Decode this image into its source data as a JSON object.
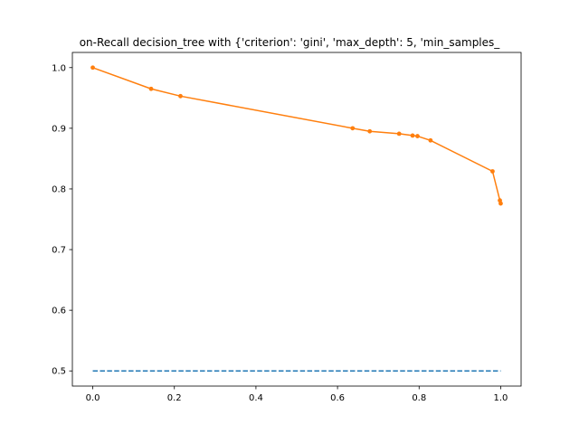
{
  "chart_data": {
    "type": "line",
    "title": "on-Recall decision_tree with {'criterion': 'gini', 'max_depth': 5, 'min_samples_",
    "xlabel": "",
    "ylabel": "",
    "xlim": [
      -0.05,
      1.05
    ],
    "ylim": [
      0.475,
      1.025
    ],
    "x_ticks": [
      0.0,
      0.2,
      0.4,
      0.6,
      0.8,
      1.0
    ],
    "x_tick_labels": [
      "0.0",
      "0.2",
      "0.4",
      "0.6",
      "0.8",
      "1.0"
    ],
    "y_ticks": [
      0.5,
      0.6,
      0.7,
      0.8,
      0.9,
      1.0
    ],
    "y_tick_labels": [
      "0.5",
      "0.6",
      "0.7",
      "0.8",
      "0.9",
      "1.0"
    ],
    "grid": false,
    "series": [
      {
        "style": "dashed",
        "color": "#1f77b4",
        "x": [
          0.0,
          1.0
        ],
        "y": [
          0.5,
          0.5
        ]
      },
      {
        "style": "solid-with-markers",
        "color": "#ff7f0e",
        "x": [
          0.0,
          0.143,
          0.215,
          0.637,
          0.679,
          0.751,
          0.784,
          0.796,
          0.828,
          0.98,
          0.998,
          1.0
        ],
        "y": [
          1.0,
          0.965,
          0.953,
          0.9,
          0.895,
          0.891,
          0.888,
          0.887,
          0.88,
          0.829,
          0.781,
          0.776
        ]
      }
    ]
  }
}
